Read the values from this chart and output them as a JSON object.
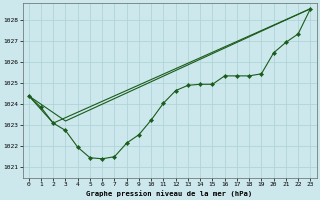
{
  "xlabel": "Graphe pression niveau de la mer (hPa)",
  "background_color": "#cce8ec",
  "grid_color": "#b0d4d8",
  "line_color": "#1a5c1a",
  "ylim": [
    1020.5,
    1028.8
  ],
  "yticks": [
    1021,
    1022,
    1023,
    1024,
    1025,
    1026,
    1027,
    1028
  ],
  "xlim": [
    -0.5,
    23.5
  ],
  "xticks": [
    0,
    1,
    2,
    3,
    4,
    5,
    6,
    7,
    8,
    9,
    10,
    11,
    12,
    13,
    14,
    15,
    16,
    17,
    18,
    19,
    20,
    21,
    22,
    23
  ],
  "line1_x": [
    0,
    1,
    2,
    3,
    4,
    5,
    6,
    7,
    8,
    9,
    10,
    11,
    12,
    13,
    14,
    15,
    16,
    17,
    18,
    19,
    20,
    21,
    22,
    23
  ],
  "line1_y": [
    1024.4,
    1023.85,
    1023.1,
    1022.75,
    1021.95,
    1021.45,
    1021.4,
    1021.5,
    1022.15,
    1022.55,
    1023.25,
    1024.05,
    1024.65,
    1024.9,
    1024.95,
    1024.95,
    1025.35,
    1025.35,
    1025.35,
    1025.45,
    1026.45,
    1026.95,
    1027.35,
    1028.55
  ],
  "line2_x": [
    0,
    2,
    23
  ],
  "line2_y": [
    1024.4,
    1023.1,
    1028.55
  ],
  "line3_x": [
    0,
    3,
    23
  ],
  "line3_y": [
    1024.4,
    1023.2,
    1028.55
  ]
}
